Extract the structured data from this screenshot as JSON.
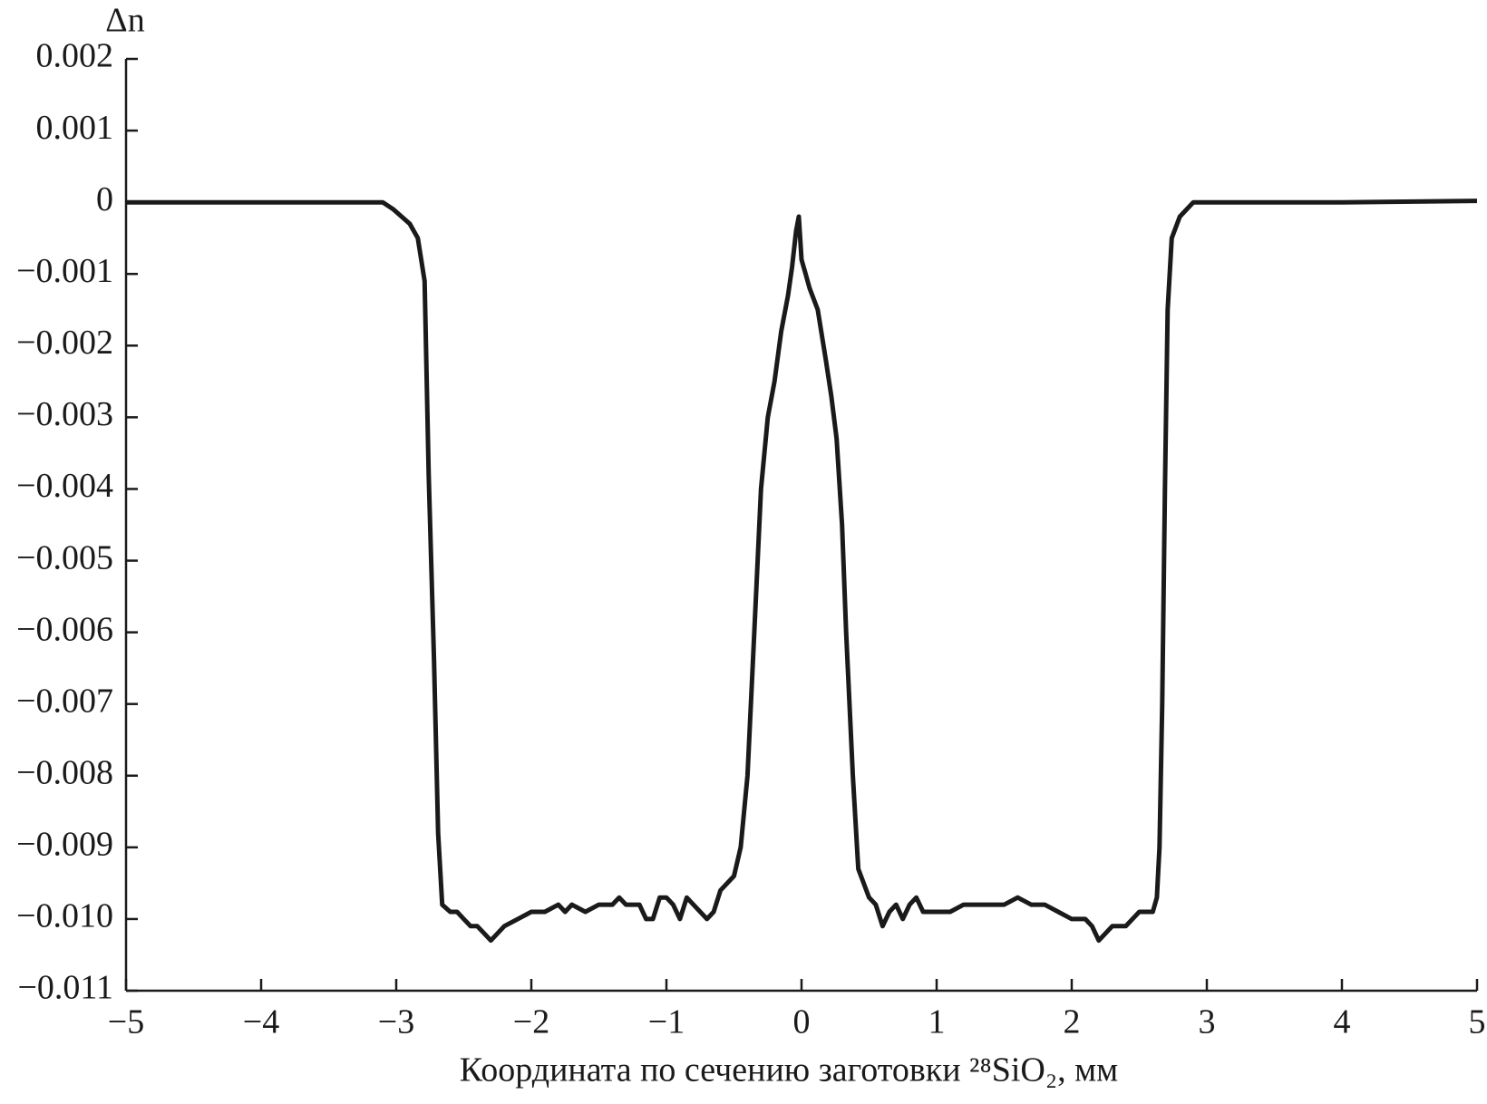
{
  "chart_data": {
    "type": "line",
    "ylabel": "Δn",
    "xlabel": "Координата по сечению заготовки ²⁸SiO₂, мм",
    "xlim": [
      -5,
      5
    ],
    "ylim": [
      -0.011,
      0.002
    ],
    "xticks": [
      {
        "value": -5,
        "label": "−5"
      },
      {
        "value": -4,
        "label": "−4"
      },
      {
        "value": -3,
        "label": "−3"
      },
      {
        "value": -2,
        "label": "−2"
      },
      {
        "value": -1,
        "label": "−1"
      },
      0,
      1,
      2,
      3,
      4,
      5
    ],
    "yticks": [
      0.002,
      0.001,
      0,
      {
        "value": -0.001,
        "label": "−0.001"
      },
      {
        "value": -0.002,
        "label": "−0.002"
      },
      {
        "value": -0.003,
        "label": "−0.003"
      },
      {
        "value": -0.004,
        "label": "−0.004"
      },
      {
        "value": -0.005,
        "label": "−0.005"
      },
      {
        "value": -0.006,
        "label": "−0.006"
      },
      {
        "value": -0.007,
        "label": "−0.007"
      },
      {
        "value": -0.008,
        "label": "−0.008"
      },
      {
        "value": -0.009,
        "label": "−0.009"
      },
      {
        "value": -0.01,
        "label": "−0.010"
      },
      {
        "value": -0.011,
        "label": "−0.011"
      }
    ],
    "color": "#1a1a1a",
    "x": [
      -5,
      -4,
      -3.1,
      -3.02,
      -2.9,
      -2.84,
      -2.79,
      -2.76,
      -2.72,
      -2.69,
      -2.66,
      -2.6,
      -2.55,
      -2.5,
      -2.45,
      -2.4,
      -2.35,
      -2.3,
      -2.25,
      -2.2,
      -2.1,
      -2.0,
      -1.9,
      -1.8,
      -1.75,
      -1.7,
      -1.6,
      -1.5,
      -1.4,
      -1.35,
      -1.3,
      -1.2,
      -1.15,
      -1.1,
      -1.05,
      -1.0,
      -0.95,
      -0.9,
      -0.85,
      -0.8,
      -0.7,
      -0.65,
      -0.6,
      -0.5,
      -0.45,
      -0.4,
      -0.35,
      -0.3,
      -0.25,
      -0.2,
      -0.15,
      -0.1,
      -0.07,
      -0.04,
      -0.02,
      0,
      0.03,
      0.06,
      0.12,
      0.18,
      0.22,
      0.26,
      0.3,
      0.33,
      0.38,
      0.42,
      0.5,
      0.55,
      0.6,
      0.65,
      0.7,
      0.75,
      0.8,
      0.85,
      0.9,
      1.0,
      1.1,
      1.2,
      1.3,
      1.4,
      1.5,
      1.6,
      1.7,
      1.8,
      1.9,
      2.0,
      2.1,
      2.15,
      2.2,
      2.25,
      2.3,
      2.4,
      2.45,
      2.5,
      2.6,
      2.63,
      2.65,
      2.67,
      2.69,
      2.71,
      2.74,
      2.8,
      2.9,
      3.0,
      4.0,
      5.0
    ],
    "values": [
      0,
      0,
      0,
      -0.0001,
      -0.0003,
      -0.0005,
      -0.0011,
      -0.0038,
      -0.0064,
      -0.0088,
      -0.0098,
      -0.0099,
      -0.0099,
      -0.01,
      -0.0101,
      -0.0101,
      -0.0102,
      -0.0103,
      -0.0102,
      -0.0101,
      -0.01,
      -0.0099,
      -0.0099,
      -0.0098,
      -0.0099,
      -0.0098,
      -0.0099,
      -0.0098,
      -0.0098,
      -0.0097,
      -0.0098,
      -0.0098,
      -0.01,
      -0.01,
      -0.0097,
      -0.0097,
      -0.0098,
      -0.01,
      -0.0097,
      -0.0098,
      -0.01,
      -0.0099,
      -0.0096,
      -0.0094,
      -0.009,
      -0.008,
      -0.006,
      -0.004,
      -0.003,
      -0.0025,
      -0.0018,
      -0.0013,
      -0.0009,
      -0.0004,
      -0.0002,
      -0.0008,
      -0.001,
      -0.0012,
      -0.0015,
      -0.0022,
      -0.0027,
      -0.0033,
      -0.0045,
      -0.006,
      -0.008,
      -0.0093,
      -0.0097,
      -0.0098,
      -0.0101,
      -0.0099,
      -0.0098,
      -0.01,
      -0.0098,
      -0.0097,
      -0.0099,
      -0.0099,
      -0.0099,
      -0.0098,
      -0.0098,
      -0.0098,
      -0.0098,
      -0.0097,
      -0.0098,
      -0.0098,
      -0.0099,
      -0.01,
      -0.01,
      -0.0101,
      -0.0103,
      -0.0102,
      -0.0101,
      -0.0101,
      -0.01,
      -0.0099,
      -0.0099,
      -0.0097,
      -0.009,
      -0.007,
      -0.004,
      -0.0015,
      -0.0005,
      -0.0002,
      0,
      0,
      0,
      2e-05
    ]
  }
}
